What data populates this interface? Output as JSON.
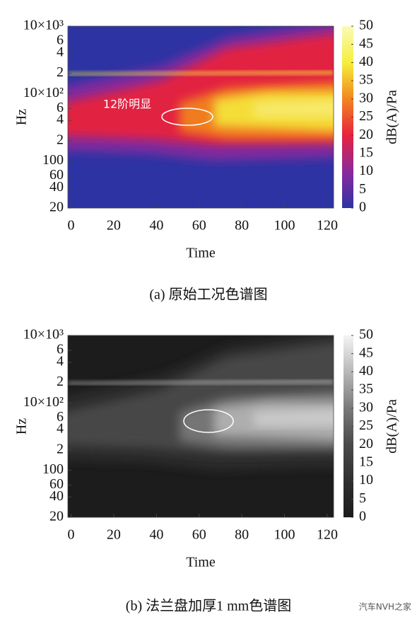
{
  "chart_data": [
    {
      "type": "spectrogram",
      "caption": "(a) 原始工况色谱图",
      "xlabel": "Time",
      "ylabel": "Hz",
      "annotation": "12阶明显",
      "xlim": [
        -1.5,
        123
      ],
      "xticks": [
        0,
        20,
        40,
        60,
        80,
        100,
        120
      ],
      "ylog": true,
      "ylim": [
        20,
        10000
      ],
      "yticks": [
        20,
        40,
        60,
        100,
        {
          "value": 200,
          "label": "2"
        },
        {
          "value": 400,
          "label": "4"
        },
        {
          "value": 600,
          "label": "6"
        },
        {
          "value": 1000,
          "label": "10×10²"
        },
        {
          "value": 2000,
          "label": "2"
        },
        {
          "value": 4000,
          "label": "4"
        },
        {
          "value": 6000,
          "label": "6"
        },
        {
          "value": 10000,
          "label": "10×10³"
        }
      ],
      "colormap": [
        "#2e33a3",
        "#8a2a9e",
        "#e8223e",
        "#f2861f",
        "#f6ee3c",
        "#fbfab8"
      ],
      "colorbar": {
        "label": "dB(A)/Pa",
        "lim": [
          0,
          50
        ],
        "ticks": [
          0,
          5,
          10,
          15,
          20,
          25,
          30,
          35,
          40,
          45,
          50
        ]
      }
    },
    {
      "type": "spectrogram",
      "caption": "(b) 法兰盘加厚1 mm色谱图",
      "xlabel": "Time",
      "ylabel": "Hz",
      "xlim": [
        -1.5,
        123
      ],
      "xticks": [
        0,
        20,
        40,
        60,
        80,
        100,
        120
      ],
      "ylog": true,
      "ylim": [
        20,
        10000
      ],
      "yticks": [
        20,
        40,
        60,
        100,
        {
          "value": 200,
          "label": "2"
        },
        {
          "value": 400,
          "label": "4"
        },
        {
          "value": 600,
          "label": "6"
        },
        {
          "value": 1000,
          "label": "10×10²"
        },
        {
          "value": 2000,
          "label": "2"
        },
        {
          "value": 4000,
          "label": "4"
        },
        {
          "value": 6000,
          "label": "6"
        },
        {
          "value": 10000,
          "label": "10×10³"
        }
      ],
      "colormap": [
        "#1c1c1c",
        "#2f2f2f",
        "#4a4a4a",
        "#7a7a7a",
        "#b8b8b8",
        "#f4f4f4"
      ],
      "colorbar": {
        "label": "dB(A)/Pa",
        "lim": [
          0,
          50
        ],
        "ticks": [
          0,
          5,
          10,
          15,
          20,
          25,
          30,
          35,
          40,
          45,
          50
        ]
      }
    }
  ],
  "watermark": "汽车NVH之家"
}
